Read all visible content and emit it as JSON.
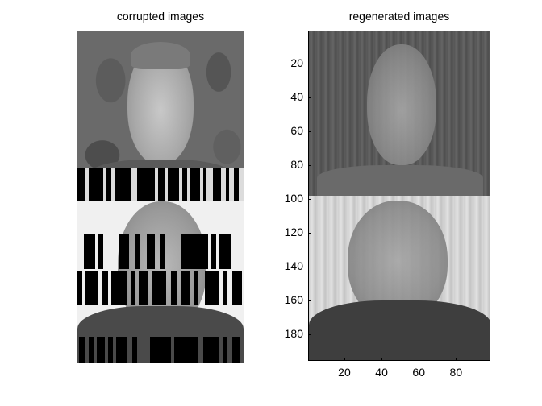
{
  "chart_data": [
    {
      "type": "image",
      "title": "corrupted images",
      "axes_visible": false
    },
    {
      "type": "image",
      "title": "regenerated images",
      "axes_visible": true,
      "xlim": [
        0.5,
        98.5
      ],
      "ylim": [
        195.5,
        0.5
      ],
      "xticks": [
        20,
        40,
        60,
        80
      ],
      "yticks": [
        20,
        40,
        60,
        80,
        100,
        120,
        140,
        160,
        180
      ],
      "colormap": "gray"
    }
  ]
}
